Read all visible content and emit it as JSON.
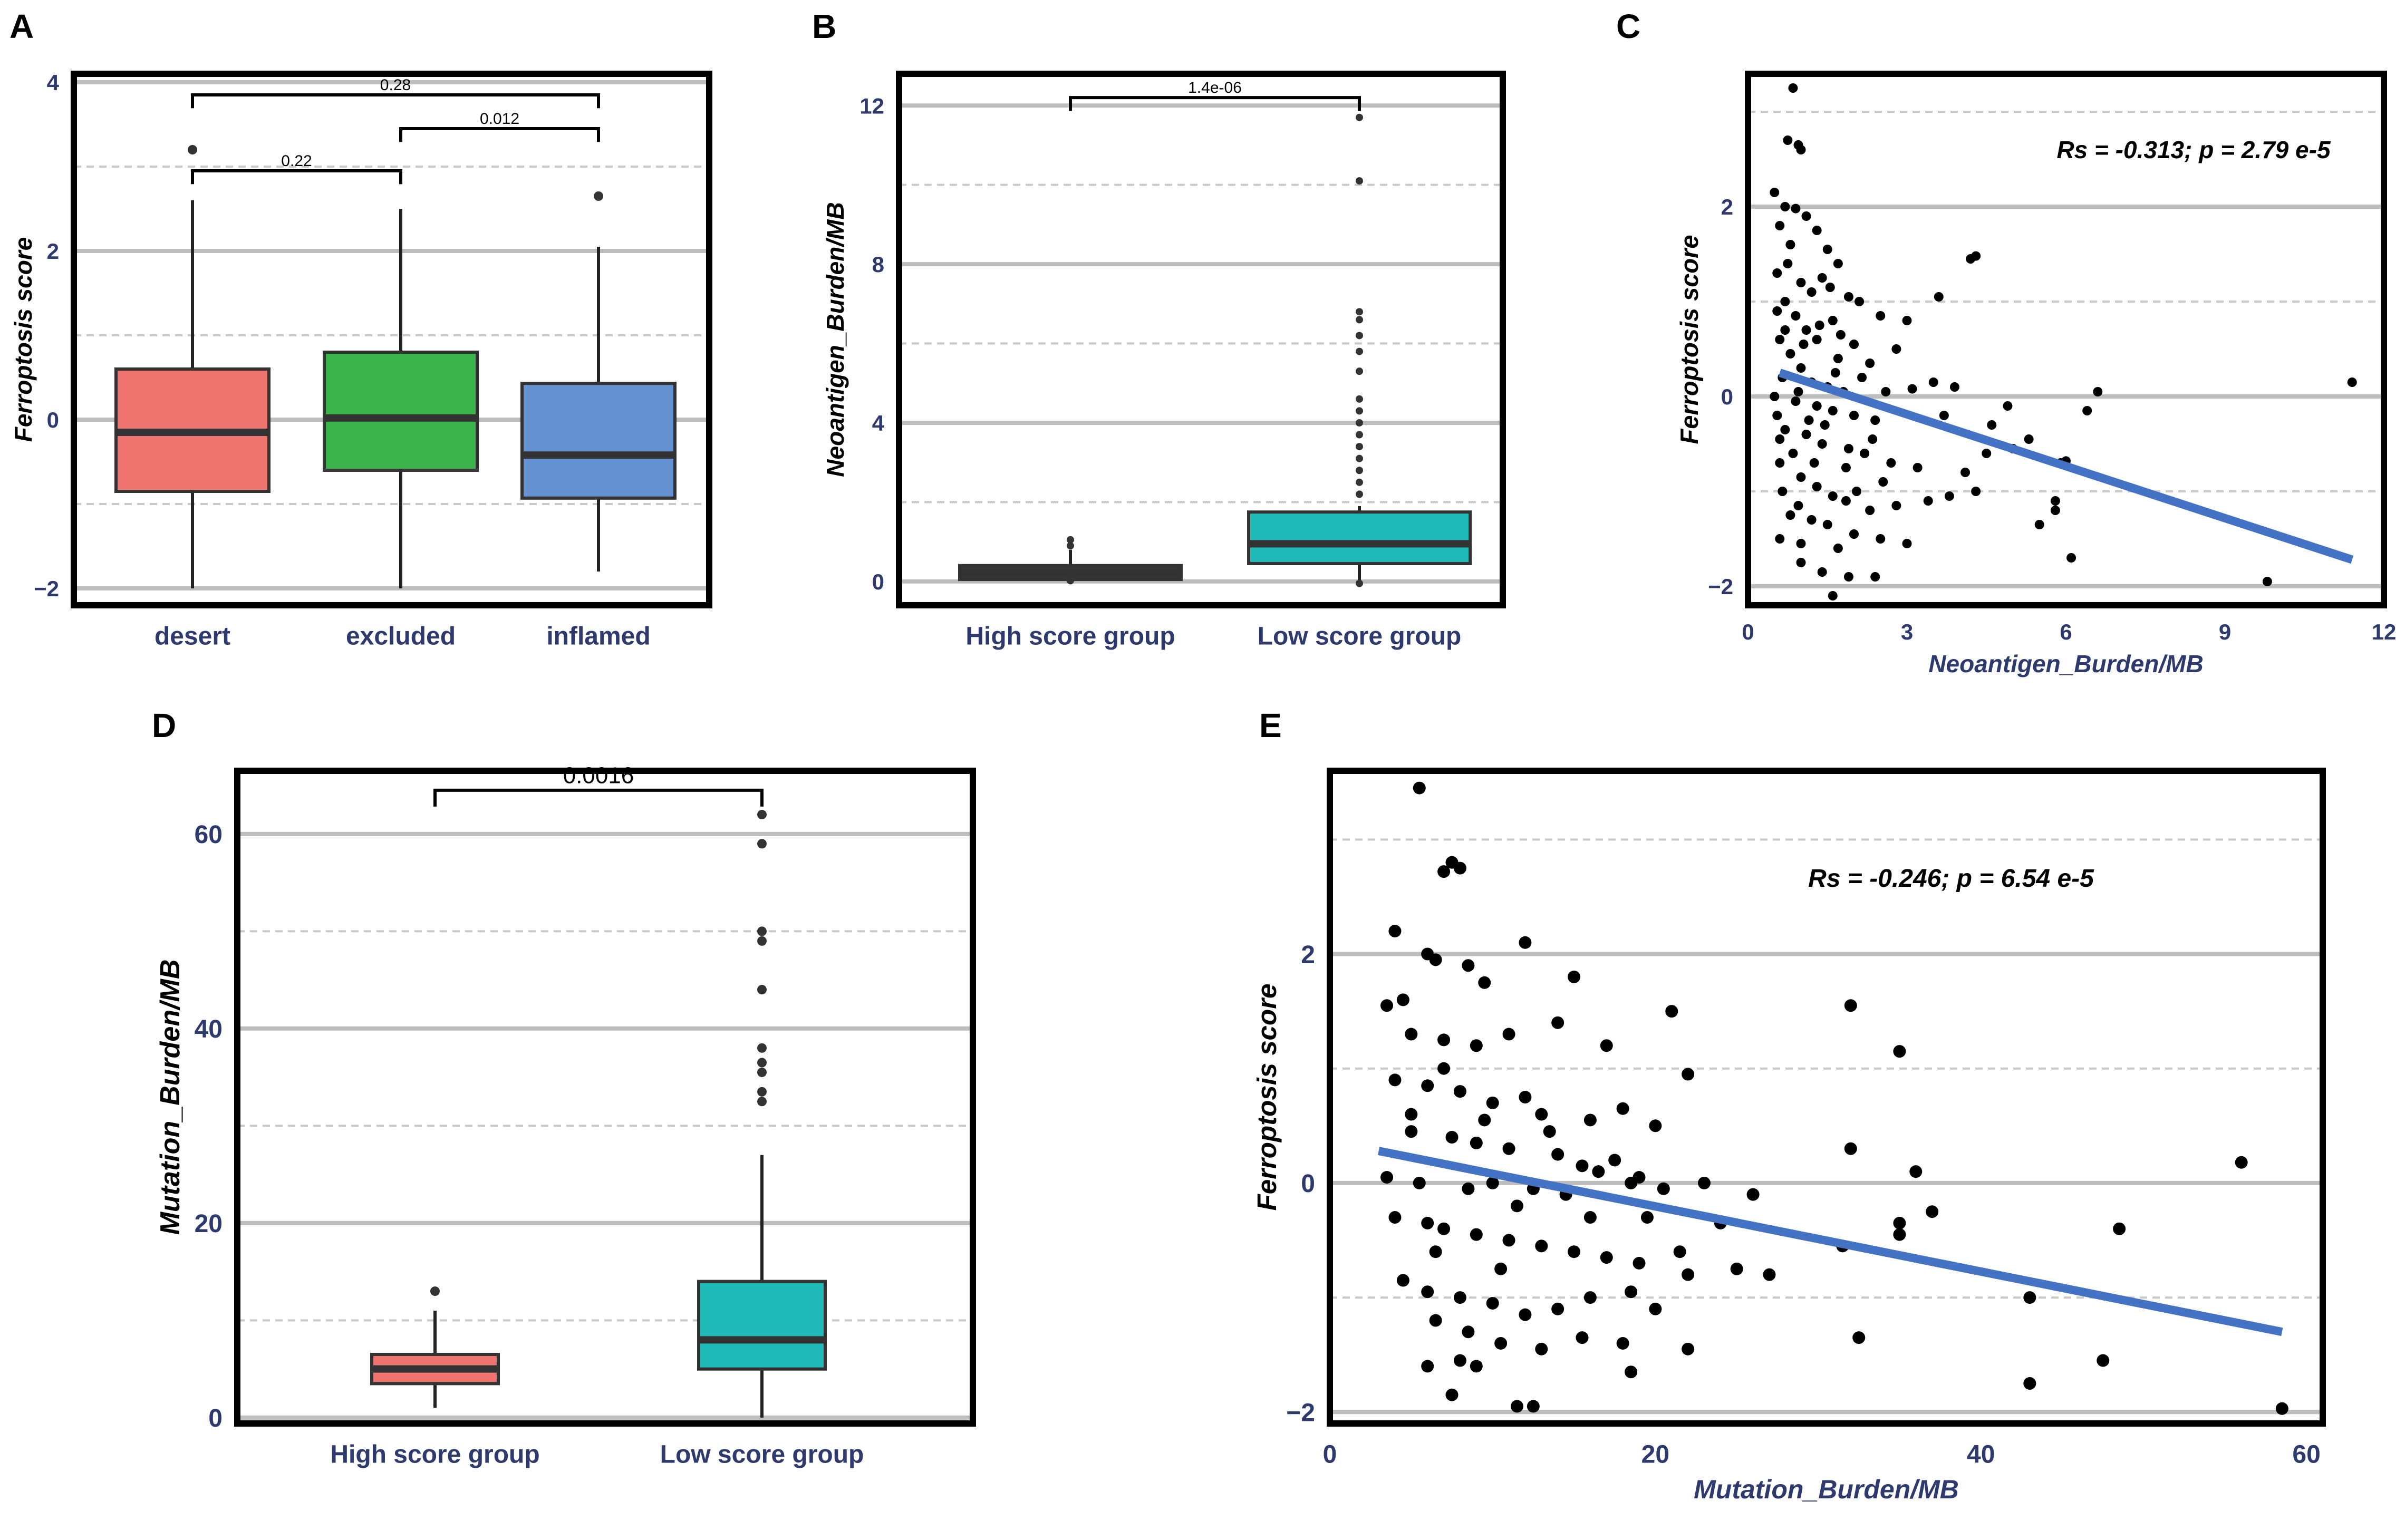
{
  "panels": {
    "A": {
      "label": "A"
    },
    "B": {
      "label": "B"
    },
    "C": {
      "label": "C"
    },
    "D": {
      "label": "D"
    },
    "E": {
      "label": "E"
    }
  },
  "colors": {
    "desert": "#F07470",
    "excluded": "#3CB44B",
    "inflamed": "#6492D0",
    "high": "#F07470",
    "low": "#20BBB9",
    "dark_box": "#3A3534",
    "regression": "#4472C4",
    "axis_text": "#2E3A6E",
    "grid_major": "#BDBDBD",
    "grid_minor": "#C9C9C9"
  },
  "chart_data": [
    {
      "id": "A",
      "type": "box",
      "title": "",
      "xlabel": "",
      "ylabel": "Ferroptosis score",
      "ylim": [
        -2.2,
        4.1
      ],
      "yticks": [
        -2,
        0,
        2,
        4
      ],
      "tick_labels": [
        "−2",
        "0",
        "2",
        "4"
      ],
      "categories": [
        "desert",
        "excluded",
        "inflamed"
      ],
      "boxes": [
        {
          "min": -2.0,
          "q1": -0.85,
          "median": -0.15,
          "q3": 0.6,
          "max": 2.6,
          "outliers": [
            3.2
          ]
        },
        {
          "min": -2.0,
          "q1": -0.6,
          "median": 0.02,
          "q3": 0.8,
          "max": 2.5,
          "outliers": []
        },
        {
          "min": -1.8,
          "q1": -0.93,
          "median": -0.42,
          "q3": 0.43,
          "max": 2.05,
          "outliers": [
            2.65
          ]
        }
      ],
      "comparisons": [
        {
          "from": 0,
          "to": 2,
          "label": "0.28",
          "y": 3.85
        },
        {
          "from": 0,
          "to": 1,
          "label": "0.22",
          "y": 2.95
        },
        {
          "from": 1,
          "to": 2,
          "label": "0.012",
          "y": 3.45
        }
      ]
    },
    {
      "id": "B",
      "type": "box",
      "title": "",
      "xlabel": "",
      "ylabel": "Neoantigen_Burden/MB",
      "ylim": [
        -0.6,
        12.8
      ],
      "yticks": [
        0,
        4,
        8,
        12
      ],
      "tick_labels": [
        "0",
        "4",
        "8",
        "12"
      ],
      "categories": [
        "High score group",
        "Low score group"
      ],
      "boxes": [
        {
          "min": 0.0,
          "q1": 0.05,
          "median": 0.2,
          "q3": 0.4,
          "max": 0.8,
          "outliers": [
            1.05,
            0.9,
            0.02
          ]
        },
        {
          "min": 0.0,
          "q1": 0.45,
          "median": 0.95,
          "q3": 1.75,
          "max": 1.9,
          "outliers": [
            2.2,
            2.5,
            2.8,
            3.1,
            3.4,
            3.7,
            4.0,
            4.3,
            4.6,
            5.3,
            5.8,
            6.2,
            6.6,
            6.8,
            10.1,
            11.7,
            -0.05
          ]
        }
      ],
      "comparisons": [
        {
          "from": 0,
          "to": 1,
          "label": "1.4e-06",
          "y": 12.2
        }
      ]
    },
    {
      "id": "C",
      "type": "scatter",
      "title": "",
      "xlabel": "Neoantigen_Burden/MB",
      "ylabel": "Ferroptosis score",
      "xlim": [
        0,
        12
      ],
      "ylim": [
        -2.2,
        3.4
      ],
      "xticks": [
        0,
        3,
        6,
        9,
        12
      ],
      "yticks": [
        -2,
        0,
        2
      ],
      "x_tick_labels": [
        "0",
        "3",
        "6",
        "9",
        "12"
      ],
      "y_tick_labels": [
        "−2",
        "0",
        "2"
      ],
      "annotation": "Rs = -0.313; p = 2.79 e-5",
      "regression": {
        "x": [
          0.6,
          11.4
        ],
        "y": [
          0.25,
          -1.72
        ]
      },
      "points": [
        [
          0.85,
          3.25
        ],
        [
          0.75,
          2.7
        ],
        [
          0.95,
          2.65
        ],
        [
          1.0,
          2.6
        ],
        [
          0.5,
          2.15
        ],
        [
          0.7,
          2.0
        ],
        [
          0.9,
          1.98
        ],
        [
          1.1,
          1.9
        ],
        [
          1.3,
          1.75
        ],
        [
          0.6,
          1.8
        ],
        [
          0.8,
          1.6
        ],
        [
          1.5,
          1.55
        ],
        [
          1.7,
          1.4
        ],
        [
          0.55,
          1.3
        ],
        [
          1.0,
          1.2
        ],
        [
          1.2,
          1.1
        ],
        [
          1.4,
          1.25
        ],
        [
          1.9,
          1.05
        ],
        [
          2.1,
          1.0
        ],
        [
          0.7,
          1.0
        ],
        [
          0.9,
          0.85
        ],
        [
          1.6,
          0.8
        ],
        [
          2.5,
          0.85
        ],
        [
          3.0,
          0.8
        ],
        [
          1.1,
          0.7
        ],
        [
          1.3,
          0.6
        ],
        [
          0.6,
          0.6
        ],
        [
          2.0,
          0.55
        ],
        [
          0.8,
          0.45
        ],
        [
          1.7,
          0.4
        ],
        [
          2.3,
          0.35
        ],
        [
          1.0,
          0.3
        ],
        [
          3.6,
          1.05
        ],
        [
          4.2,
          1.45
        ],
        [
          4.3,
          1.48
        ],
        [
          2.8,
          0.5
        ],
        [
          0.65,
          0.2
        ],
        [
          1.2,
          0.15
        ],
        [
          1.5,
          0.1
        ],
        [
          1.8,
          0.05
        ],
        [
          2.6,
          0.05
        ],
        [
          3.1,
          0.08
        ],
        [
          3.5,
          0.15
        ],
        [
          3.9,
          0.1
        ],
        [
          0.5,
          0.0
        ],
        [
          0.9,
          -0.05
        ],
        [
          1.3,
          -0.1
        ],
        [
          1.6,
          -0.15
        ],
        [
          2.0,
          -0.2
        ],
        [
          2.4,
          -0.25
        ],
        [
          3.7,
          -0.2
        ],
        [
          4.6,
          -0.3
        ],
        [
          5.3,
          -0.45
        ],
        [
          6.6,
          0.05
        ],
        [
          6.4,
          -0.15
        ],
        [
          4.9,
          -0.1
        ],
        [
          0.7,
          -0.35
        ],
        [
          1.1,
          -0.4
        ],
        [
          1.4,
          -0.5
        ],
        [
          1.9,
          -0.55
        ],
        [
          2.2,
          -0.6
        ],
        [
          2.7,
          -0.7
        ],
        [
          3.2,
          -0.75
        ],
        [
          4.1,
          -0.8
        ],
        [
          4.5,
          -0.6
        ],
        [
          5.0,
          -0.55
        ],
        [
          5.9,
          -0.7
        ],
        [
          6.0,
          -0.68
        ],
        [
          0.6,
          -0.7
        ],
        [
          1.0,
          -0.85
        ],
        [
          1.3,
          -0.95
        ],
        [
          1.6,
          -1.05
        ],
        [
          1.85,
          -1.1
        ],
        [
          2.3,
          -1.2
        ],
        [
          2.8,
          -1.15
        ],
        [
          3.4,
          -1.1
        ],
        [
          3.8,
          -1.05
        ],
        [
          4.3,
          -1.0
        ],
        [
          5.8,
          -1.1
        ],
        [
          5.8,
          -1.2
        ],
        [
          0.8,
          -1.25
        ],
        [
          1.2,
          -1.3
        ],
        [
          1.5,
          -1.35
        ],
        [
          2.0,
          -1.45
        ],
        [
          2.5,
          -1.5
        ],
        [
          0.6,
          -1.5
        ],
        [
          1.0,
          -1.55
        ],
        [
          1.7,
          -1.6
        ],
        [
          3.0,
          -1.55
        ],
        [
          5.5,
          -1.35
        ],
        [
          6.1,
          -1.7
        ],
        [
          1.4,
          -1.85
        ],
        [
          1.9,
          -1.9
        ],
        [
          2.4,
          -1.9
        ],
        [
          9.8,
          -1.95
        ],
        [
          1.6,
          -2.1
        ],
        [
          11.4,
          0.15
        ],
        [
          0.55,
          0.9
        ],
        [
          0.75,
          1.4
        ],
        [
          1.05,
          0.55
        ],
        [
          0.95,
          0.05
        ],
        [
          1.15,
          -0.25
        ],
        [
          0.85,
          -0.6
        ],
        [
          0.65,
          -1.0
        ],
        [
          0.95,
          -1.15
        ],
        [
          1.25,
          -0.7
        ],
        [
          1.45,
          -0.3
        ],
        [
          1.65,
          0.25
        ],
        [
          1.35,
          0.75
        ],
        [
          1.55,
          1.15
        ],
        [
          1.75,
          0.65
        ],
        [
          2.15,
          0.2
        ],
        [
          2.35,
          -0.45
        ],
        [
          2.55,
          -0.9
        ],
        [
          1.85,
          -0.75
        ],
        [
          2.05,
          -1.0
        ],
        [
          0.7,
          0.7
        ],
        [
          0.55,
          -0.2
        ],
        [
          0.6,
          -0.45
        ],
        [
          1.0,
          -1.75
        ]
      ]
    },
    {
      "id": "D",
      "type": "box",
      "title": "",
      "xlabel": "",
      "ylabel": "Mutation_Burden/MB",
      "ylim": [
        -0.6,
        66.5
      ],
      "yticks": [
        0,
        20,
        40,
        60
      ],
      "tick_labels": [
        "0",
        "20",
        "40",
        "60"
      ],
      "categories": [
        "High score group",
        "Low score group"
      ],
      "boxes": [
        {
          "min": 1.0,
          "q1": 3.5,
          "median": 5.0,
          "q3": 6.5,
          "max": 11.0,
          "outliers": [
            13.0
          ]
        },
        {
          "min": 0.0,
          "q1": 5.0,
          "median": 8.0,
          "q3": 14.0,
          "max": 27.0,
          "outliers": [
            32.5,
            33.5,
            35.5,
            36.5,
            38.0,
            44.0,
            49.0,
            50.0,
            59.0,
            62.0
          ]
        }
      ],
      "comparisons": [
        {
          "from": 0,
          "to": 1,
          "label": "0.0016",
          "y": 64.5
        }
      ]
    },
    {
      "id": "E",
      "type": "scatter",
      "title": "",
      "xlabel": "Mutation_Burden/MB",
      "ylabel": "Ferroptosis score",
      "xlim": [
        0,
        61
      ],
      "ylim": [
        -2.1,
        3.6
      ],
      "xticks": [
        0,
        20,
        40,
        60
      ],
      "yticks": [
        -2,
        0,
        2
      ],
      "x_tick_labels": [
        "0",
        "20",
        "40",
        "60"
      ],
      "y_tick_labels": [
        "−2",
        "0",
        "2"
      ],
      "annotation": "Rs = -0.246; p = 6.54 e-5",
      "regression": {
        "x": [
          3,
          58.5
        ],
        "y": [
          0.28,
          -1.3
        ]
      },
      "points": [
        [
          5.5,
          3.45
        ],
        [
          7.5,
          2.8
        ],
        [
          7,
          2.72
        ],
        [
          8,
          2.75
        ],
        [
          4,
          2.2
        ],
        [
          6,
          2.0
        ],
        [
          3.5,
          1.55
        ],
        [
          4.5,
          1.6
        ],
        [
          6.5,
          1.95
        ],
        [
          8.5,
          1.9
        ],
        [
          9.5,
          1.75
        ],
        [
          12,
          2.1
        ],
        [
          15,
          1.8
        ],
        [
          5,
          1.3
        ],
        [
          7,
          1.25
        ],
        [
          9,
          1.2
        ],
        [
          11,
          1.3
        ],
        [
          14,
          1.4
        ],
        [
          17,
          1.2
        ],
        [
          21,
          1.5
        ],
        [
          32,
          1.55
        ],
        [
          35,
          1.15
        ],
        [
          22,
          0.95
        ],
        [
          4,
          0.9
        ],
        [
          6,
          0.85
        ],
        [
          8,
          0.8
        ],
        [
          10,
          0.7
        ],
        [
          12,
          0.75
        ],
        [
          13,
          0.6
        ],
        [
          16,
          0.55
        ],
        [
          18,
          0.65
        ],
        [
          20,
          0.5
        ],
        [
          5,
          0.45
        ],
        [
          7.5,
          0.4
        ],
        [
          9,
          0.35
        ],
        [
          11,
          0.3
        ],
        [
          14,
          0.25
        ],
        [
          15.5,
          0.15
        ],
        [
          17.5,
          0.2
        ],
        [
          19,
          0.05
        ],
        [
          3.5,
          0.05
        ],
        [
          5.5,
          0.0
        ],
        [
          8.5,
          -0.05
        ],
        [
          10,
          0.0
        ],
        [
          12.5,
          -0.05
        ],
        [
          14.5,
          -0.1
        ],
        [
          16.5,
          0.1
        ],
        [
          18.5,
          0.0
        ],
        [
          20.5,
          -0.05
        ],
        [
          23,
          0.0
        ],
        [
          26,
          -0.1
        ],
        [
          32,
          0.3
        ],
        [
          36,
          0.1
        ],
        [
          37,
          -0.25
        ],
        [
          4,
          -0.3
        ],
        [
          6,
          -0.35
        ],
        [
          7,
          -0.4
        ],
        [
          9,
          -0.45
        ],
        [
          11,
          -0.5
        ],
        [
          13,
          -0.55
        ],
        [
          15,
          -0.6
        ],
        [
          17,
          -0.65
        ],
        [
          19,
          -0.7
        ],
        [
          21.5,
          -0.6
        ],
        [
          24,
          -0.35
        ],
        [
          25,
          -0.75
        ],
        [
          27,
          -0.8
        ],
        [
          31.5,
          -0.55
        ],
        [
          35,
          -0.45
        ],
        [
          35,
          -0.35
        ],
        [
          4.5,
          -0.85
        ],
        [
          6,
          -0.95
        ],
        [
          8,
          -1.0
        ],
        [
          10,
          -1.05
        ],
        [
          12,
          -1.15
        ],
        [
          14,
          -1.1
        ],
        [
          16,
          -1.0
        ],
        [
          18.5,
          -0.95
        ],
        [
          20,
          -1.1
        ],
        [
          22,
          -0.8
        ],
        [
          6.5,
          -1.2
        ],
        [
          8.5,
          -1.3
        ],
        [
          10.5,
          -1.4
        ],
        [
          13,
          -1.45
        ],
        [
          15.5,
          -1.35
        ],
        [
          18,
          -1.4
        ],
        [
          22,
          -1.45
        ],
        [
          32.5,
          -1.35
        ],
        [
          43,
          -1.0
        ],
        [
          48.5,
          -0.4
        ],
        [
          6,
          -1.6
        ],
        [
          7.5,
          -1.85
        ],
        [
          9,
          -1.6
        ],
        [
          11.5,
          -1.95
        ],
        [
          12.5,
          -1.95
        ],
        [
          18.5,
          -1.65
        ],
        [
          43,
          -1.75
        ],
        [
          47.5,
          -1.55
        ],
        [
          58.5,
          -1.97
        ],
        [
          56,
          0.18
        ],
        [
          5,
          0.6
        ],
        [
          7,
          1.0
        ],
        [
          9.5,
          0.55
        ],
        [
          11.5,
          -0.2
        ],
        [
          13.5,
          0.45
        ],
        [
          10.5,
          -0.75
        ],
        [
          8,
          -1.55
        ],
        [
          6.5,
          -0.6
        ],
        [
          16,
          -0.3
        ],
        [
          19.5,
          -0.3
        ]
      ]
    }
  ]
}
